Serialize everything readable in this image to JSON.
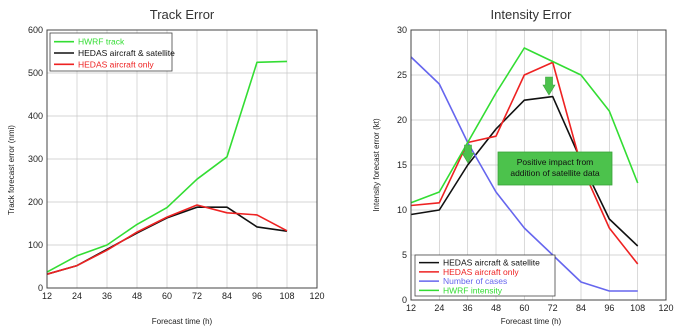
{
  "chart_data": [
    {
      "type": "line",
      "title": "Track Error",
      "xlabel": "Forecast time (h)",
      "ylabel": "Track forecast error (nmi)",
      "x": [
        12,
        24,
        36,
        48,
        60,
        72,
        84,
        96,
        108
      ],
      "xlim": [
        12,
        120
      ],
      "xticks": [
        12,
        24,
        36,
        48,
        60,
        72,
        84,
        96,
        108,
        120
      ],
      "ylim": [
        0,
        600
      ],
      "yticks": [
        0,
        100,
        200,
        300,
        400,
        500,
        600
      ],
      "grid": true,
      "legend_position": "top-left",
      "series": [
        {
          "name": "HWRF track",
          "color": "#33dd33",
          "values": [
            37,
            75,
            100,
            148,
            187,
            253,
            305,
            525,
            527
          ]
        },
        {
          "name": "HEDAS aircraft & satellite",
          "color": "#111111",
          "values": [
            32,
            52,
            90,
            128,
            163,
            188,
            188,
            142,
            132
          ]
        },
        {
          "name": "HEDAS aircraft only",
          "color": "#ee2222",
          "values": [
            32,
            52,
            88,
            130,
            165,
            193,
            175,
            170,
            133
          ]
        }
      ]
    },
    {
      "type": "line",
      "title": "Intensity Error",
      "xlabel": "Forecast time (h)",
      "ylabel": "Intensity forecast error (kt)",
      "x": [
        12,
        24,
        36,
        48,
        60,
        72,
        84,
        96,
        108
      ],
      "xlim": [
        12,
        120
      ],
      "xticks": [
        12,
        24,
        36,
        48,
        60,
        72,
        84,
        96,
        108,
        120
      ],
      "ylim": [
        0,
        30
      ],
      "yticks": [
        0,
        5,
        10,
        15,
        20,
        25,
        30
      ],
      "grid": true,
      "legend_position": "bottom-left",
      "series": [
        {
          "name": "HEDAS aircraft & satellite",
          "color": "#111111",
          "values": [
            9.5,
            10,
            15,
            19,
            22.2,
            22.6,
            15.5,
            9,
            6
          ]
        },
        {
          "name": "HEDAS aircraft only",
          "color": "#ee2222",
          "values": [
            10.5,
            10.8,
            17.5,
            18.2,
            25,
            26.4,
            15,
            8,
            4
          ]
        },
        {
          "name": "Number of cases",
          "color": "#6666ee",
          "values": [
            27,
            24,
            17.5,
            12,
            8,
            5,
            2,
            1,
            1
          ]
        },
        {
          "name": "HWRF intensity",
          "color": "#33dd33",
          "values": [
            10.8,
            12,
            17.5,
            23,
            28,
            26.5,
            25,
            21,
            13
          ]
        }
      ],
      "annotation": {
        "lines": [
          "Positive impact from",
          "addition of satellite data"
        ],
        "box_color": "#4cc24c",
        "arrow_color": "#4cc24c"
      }
    }
  ]
}
